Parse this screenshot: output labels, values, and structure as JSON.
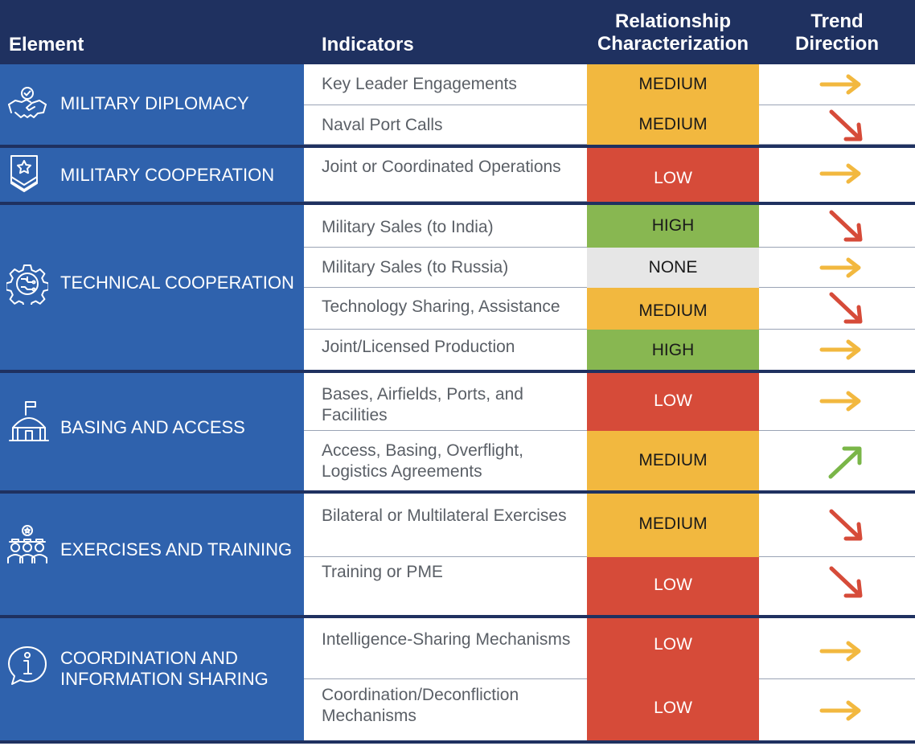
{
  "header": {
    "element": "Element",
    "indicators": "Indicators",
    "relationship_line1": "Relationship",
    "relationship_line2": "Characterization",
    "trend_line1": "Trend",
    "trend_line2": "Direction"
  },
  "colors": {
    "header_bg": "#1f3160",
    "element_bg": "#2f62ad",
    "medium": "#f2b83f",
    "low": "#d64b39",
    "high": "#88b751",
    "none": "#e6e6e6",
    "arrow_flat": "#f2b83f",
    "arrow_down": "#d64b39",
    "arrow_up": "#7ab648"
  },
  "sections": [
    {
      "element": "MILITARY DIPLOMACY",
      "icon": "handshake-icon",
      "rows": [
        {
          "indicator": "Key Leader Engagements",
          "level": "MEDIUM",
          "trend": "flat"
        },
        {
          "indicator": "Naval Port Calls",
          "level": "MEDIUM",
          "trend": "down"
        }
      ]
    },
    {
      "element": "MILITARY COOPERATION",
      "icon": "rank-insignia-icon",
      "rows": [
        {
          "indicator": "Joint or Coordinated Operations",
          "level": "LOW",
          "trend": "flat"
        }
      ]
    },
    {
      "element": "TECHNICAL COOPERATION",
      "icon": "gear-circuit-icon",
      "rows": [
        {
          "indicator": "Military Sales (to India)",
          "level": "HIGH",
          "trend": "down"
        },
        {
          "indicator": "Military Sales (to Russia)",
          "level": "NONE",
          "trend": "flat"
        },
        {
          "indicator": "Technology Sharing, Assistance",
          "level": "MEDIUM",
          "trend": "down"
        },
        {
          "indicator": "Joint/Licensed Production",
          "level": "HIGH",
          "trend": "flat"
        }
      ]
    },
    {
      "element": "BASING AND ACCESS",
      "icon": "base-tent-flag-icon",
      "rows": [
        {
          "indicator": "Bases, Airfields, Ports, and Facilities",
          "level": "LOW",
          "trend": "flat"
        },
        {
          "indicator": "Access, Basing, Overflight, Logistics Agreements",
          "level": "MEDIUM",
          "trend": "up"
        }
      ]
    },
    {
      "element": "EXERCISES AND TRAINING",
      "icon": "soldiers-group-icon",
      "rows": [
        {
          "indicator": "Bilateral or Multilateral Exercises",
          "level": "MEDIUM",
          "trend": "down"
        },
        {
          "indicator": "Training or PME",
          "level": "LOW",
          "trend": "down"
        }
      ]
    },
    {
      "element_line1": "COORDINATION AND",
      "element_line2": "INFORMATION SHARING",
      "icon": "info-speech-bubble-icon",
      "rows": [
        {
          "indicator": "Intelligence-Sharing Mechanisms",
          "level": "LOW",
          "trend": "flat"
        },
        {
          "indicator": "Coordination/Deconfliction Mechanisms",
          "level": "LOW",
          "trend": "flat"
        }
      ]
    }
  ]
}
